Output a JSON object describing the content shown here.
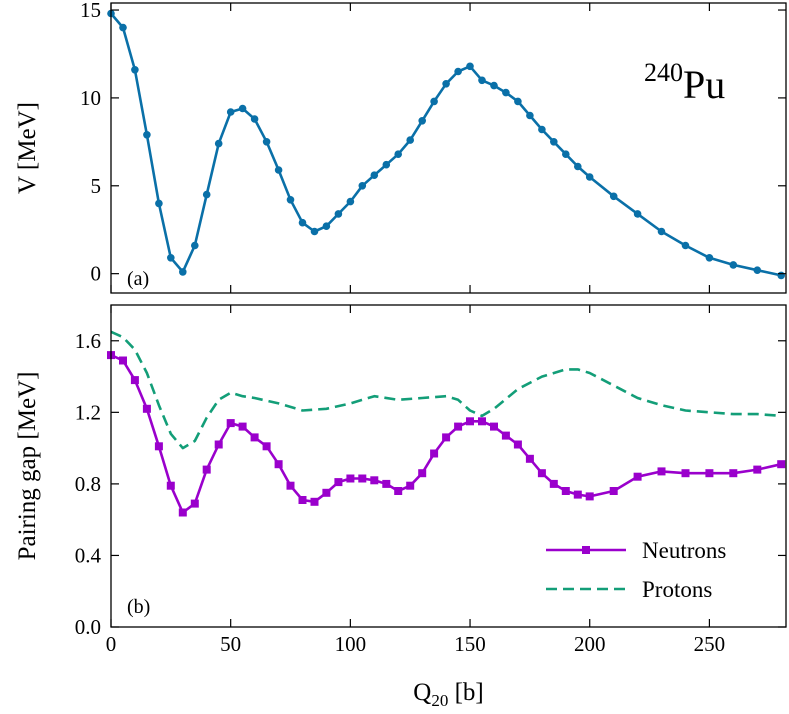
{
  "colors": {
    "potential": "#0a70a8",
    "neutrons": "#9a00cc",
    "protons": "#139e78",
    "axis": "#000000"
  },
  "chart_data": [
    {
      "panel": "a",
      "type": "line",
      "tag": "(a)",
      "annotation": {
        "mass": "240",
        "element": "Pu"
      },
      "ylabel": "V [MeV]",
      "xlim": [
        0,
        282
      ],
      "ylim": [
        -1.1,
        15.4
      ],
      "xticks": [
        0,
        50,
        100,
        150,
        200,
        250
      ],
      "yticks": [
        0,
        5,
        10,
        15
      ],
      "grid": false,
      "series": [
        {
          "name": "",
          "marker": "circle",
          "x": [
            0,
            5,
            10,
            15,
            20,
            25,
            30,
            35,
            40,
            45,
            50,
            55,
            60,
            65,
            70,
            75,
            80,
            85,
            90,
            95,
            100,
            105,
            110,
            115,
            120,
            125,
            130,
            135,
            140,
            145,
            150,
            155,
            160,
            165,
            170,
            175,
            180,
            185,
            190,
            195,
            200,
            210,
            220,
            230,
            240,
            250,
            260,
            270,
            280
          ],
          "y": [
            14.8,
            14.0,
            11.6,
            7.9,
            4.0,
            0.9,
            0.1,
            1.6,
            4.5,
            7.4,
            9.2,
            9.4,
            8.8,
            7.5,
            5.9,
            4.2,
            2.9,
            2.4,
            2.7,
            3.4,
            4.1,
            5.0,
            5.6,
            6.2,
            6.8,
            7.6,
            8.7,
            9.8,
            10.8,
            11.5,
            11.8,
            11.0,
            10.7,
            10.3,
            9.8,
            9.0,
            8.2,
            7.5,
            6.8,
            6.1,
            5.5,
            4.4,
            3.4,
            2.4,
            1.6,
            0.9,
            0.5,
            0.2,
            -0.1
          ]
        }
      ]
    },
    {
      "panel": "b",
      "type": "line",
      "tag": "(b)",
      "xlabel": {
        "base": "Q",
        "sub": "20",
        "unit": " [b]"
      },
      "ylabel": "Pairing gap [MeV]",
      "xlim": [
        0,
        282
      ],
      "ylim": [
        0.0,
        1.8
      ],
      "xticks": [
        0,
        50,
        100,
        150,
        200,
        250
      ],
      "yticks": [
        0.0,
        0.4,
        0.8,
        1.2,
        1.6
      ],
      "ytick_labels": [
        "0.0",
        "0.4",
        "0.8",
        "1.2",
        "1.6"
      ],
      "legend": "bottom-right",
      "grid": false,
      "series": [
        {
          "name": "Neutrons",
          "marker": "square",
          "style": "solid",
          "x": [
            0,
            5,
            10,
            15,
            20,
            25,
            30,
            35,
            40,
            45,
            50,
            55,
            60,
            65,
            70,
            75,
            80,
            85,
            90,
            95,
            100,
            105,
            110,
            115,
            120,
            125,
            130,
            135,
            140,
            145,
            150,
            155,
            160,
            165,
            170,
            175,
            180,
            185,
            190,
            195,
            200,
            210,
            220,
            230,
            240,
            250,
            260,
            270,
            280
          ],
          "y": [
            1.52,
            1.49,
            1.38,
            1.22,
            1.01,
            0.79,
            0.64,
            0.69,
            0.88,
            1.02,
            1.14,
            1.12,
            1.06,
            1.01,
            0.91,
            0.79,
            0.71,
            0.7,
            0.75,
            0.81,
            0.83,
            0.83,
            0.82,
            0.8,
            0.76,
            0.79,
            0.86,
            0.97,
            1.06,
            1.12,
            1.15,
            1.15,
            1.12,
            1.07,
            1.02,
            0.94,
            0.86,
            0.8,
            0.76,
            0.74,
            0.73,
            0.76,
            0.84,
            0.87,
            0.86,
            0.86,
            0.86,
            0.88,
            0.91
          ]
        },
        {
          "name": "Protons",
          "marker": "none",
          "style": "dashed",
          "x": [
            0,
            5,
            10,
            15,
            20,
            25,
            30,
            35,
            40,
            45,
            50,
            55,
            60,
            70,
            80,
            90,
            100,
            110,
            120,
            130,
            140,
            145,
            150,
            155,
            160,
            170,
            180,
            190,
            195,
            200,
            210,
            220,
            230,
            240,
            250,
            260,
            270,
            280
          ],
          "y": [
            1.65,
            1.62,
            1.55,
            1.42,
            1.24,
            1.08,
            1.0,
            1.04,
            1.17,
            1.27,
            1.31,
            1.29,
            1.28,
            1.25,
            1.21,
            1.22,
            1.25,
            1.29,
            1.27,
            1.28,
            1.29,
            1.27,
            1.21,
            1.18,
            1.22,
            1.33,
            1.4,
            1.44,
            1.44,
            1.42,
            1.35,
            1.28,
            1.24,
            1.21,
            1.2,
            1.19,
            1.19,
            1.18
          ]
        }
      ]
    }
  ]
}
